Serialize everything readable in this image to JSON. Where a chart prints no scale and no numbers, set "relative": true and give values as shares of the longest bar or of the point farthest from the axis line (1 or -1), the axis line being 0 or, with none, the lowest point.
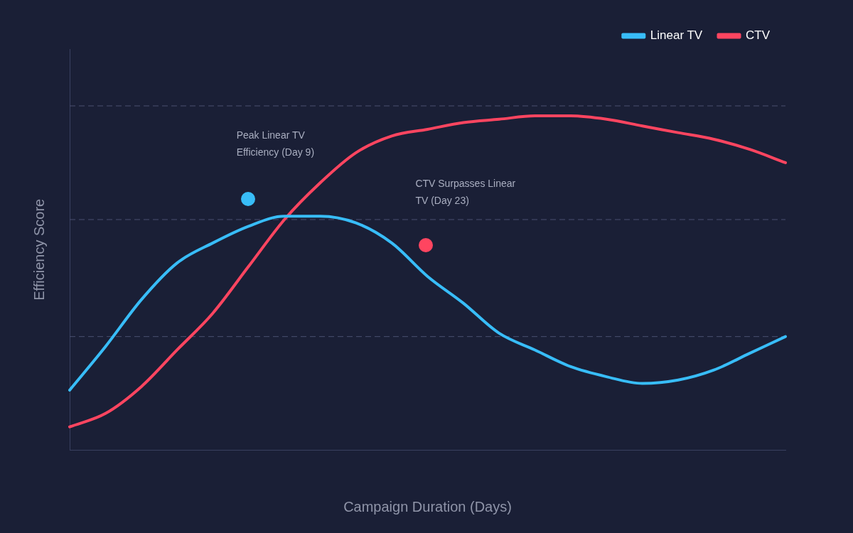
{
  "chart_data": {
    "type": "line",
    "relative": true,
    "xlabel": "Campaign Duration (Days)",
    "ylabel": "Efficiency Score",
    "categories": [
      null,
      null,
      null,
      null,
      null,
      null,
      null,
      null,
      null,
      null,
      null,
      null,
      null,
      null,
      null,
      null,
      null,
      null,
      null,
      null,
      null
    ],
    "series": [
      {
        "name": "Linear TV",
        "color": "#38bdf8",
        "values": [
          0.18,
          0.31,
          0.45,
          0.56,
          0.62,
          0.67,
          0.7,
          0.7,
          0.68,
          0.62,
          0.52,
          0.44,
          0.35,
          0.3,
          0.25,
          0.22,
          0.2,
          0.21,
          0.24,
          0.29,
          0.34
        ]
      },
      {
        "name": "CTV",
        "color": "#ff4560",
        "values": [
          0.07,
          0.11,
          0.19,
          0.3,
          0.41,
          0.55,
          0.69,
          0.8,
          0.89,
          0.94,
          0.96,
          0.98,
          0.99,
          1.0,
          1.0,
          0.99,
          0.97,
          0.95,
          0.93,
          0.9,
          0.86
        ]
      }
    ],
    "annotations": [
      "Peak Linear TV Efficiency (Day 9)",
      "CTV Surpasses Linear TV (Day 23)"
    ],
    "ref_lines": [
      {
        "axis": "y",
        "value": 0.34,
        "color": "#4a5070",
        "line_style": "dashed"
      },
      {
        "axis": "y",
        "value": 0.69,
        "color": "#4a5070",
        "line_style": "dashed"
      },
      {
        "axis": "y",
        "value": 1.03,
        "color": "#4a5070",
        "line_style": "dashed"
      }
    ],
    "legend": "top right",
    "marker": "none",
    "line_style": "solid"
  }
}
